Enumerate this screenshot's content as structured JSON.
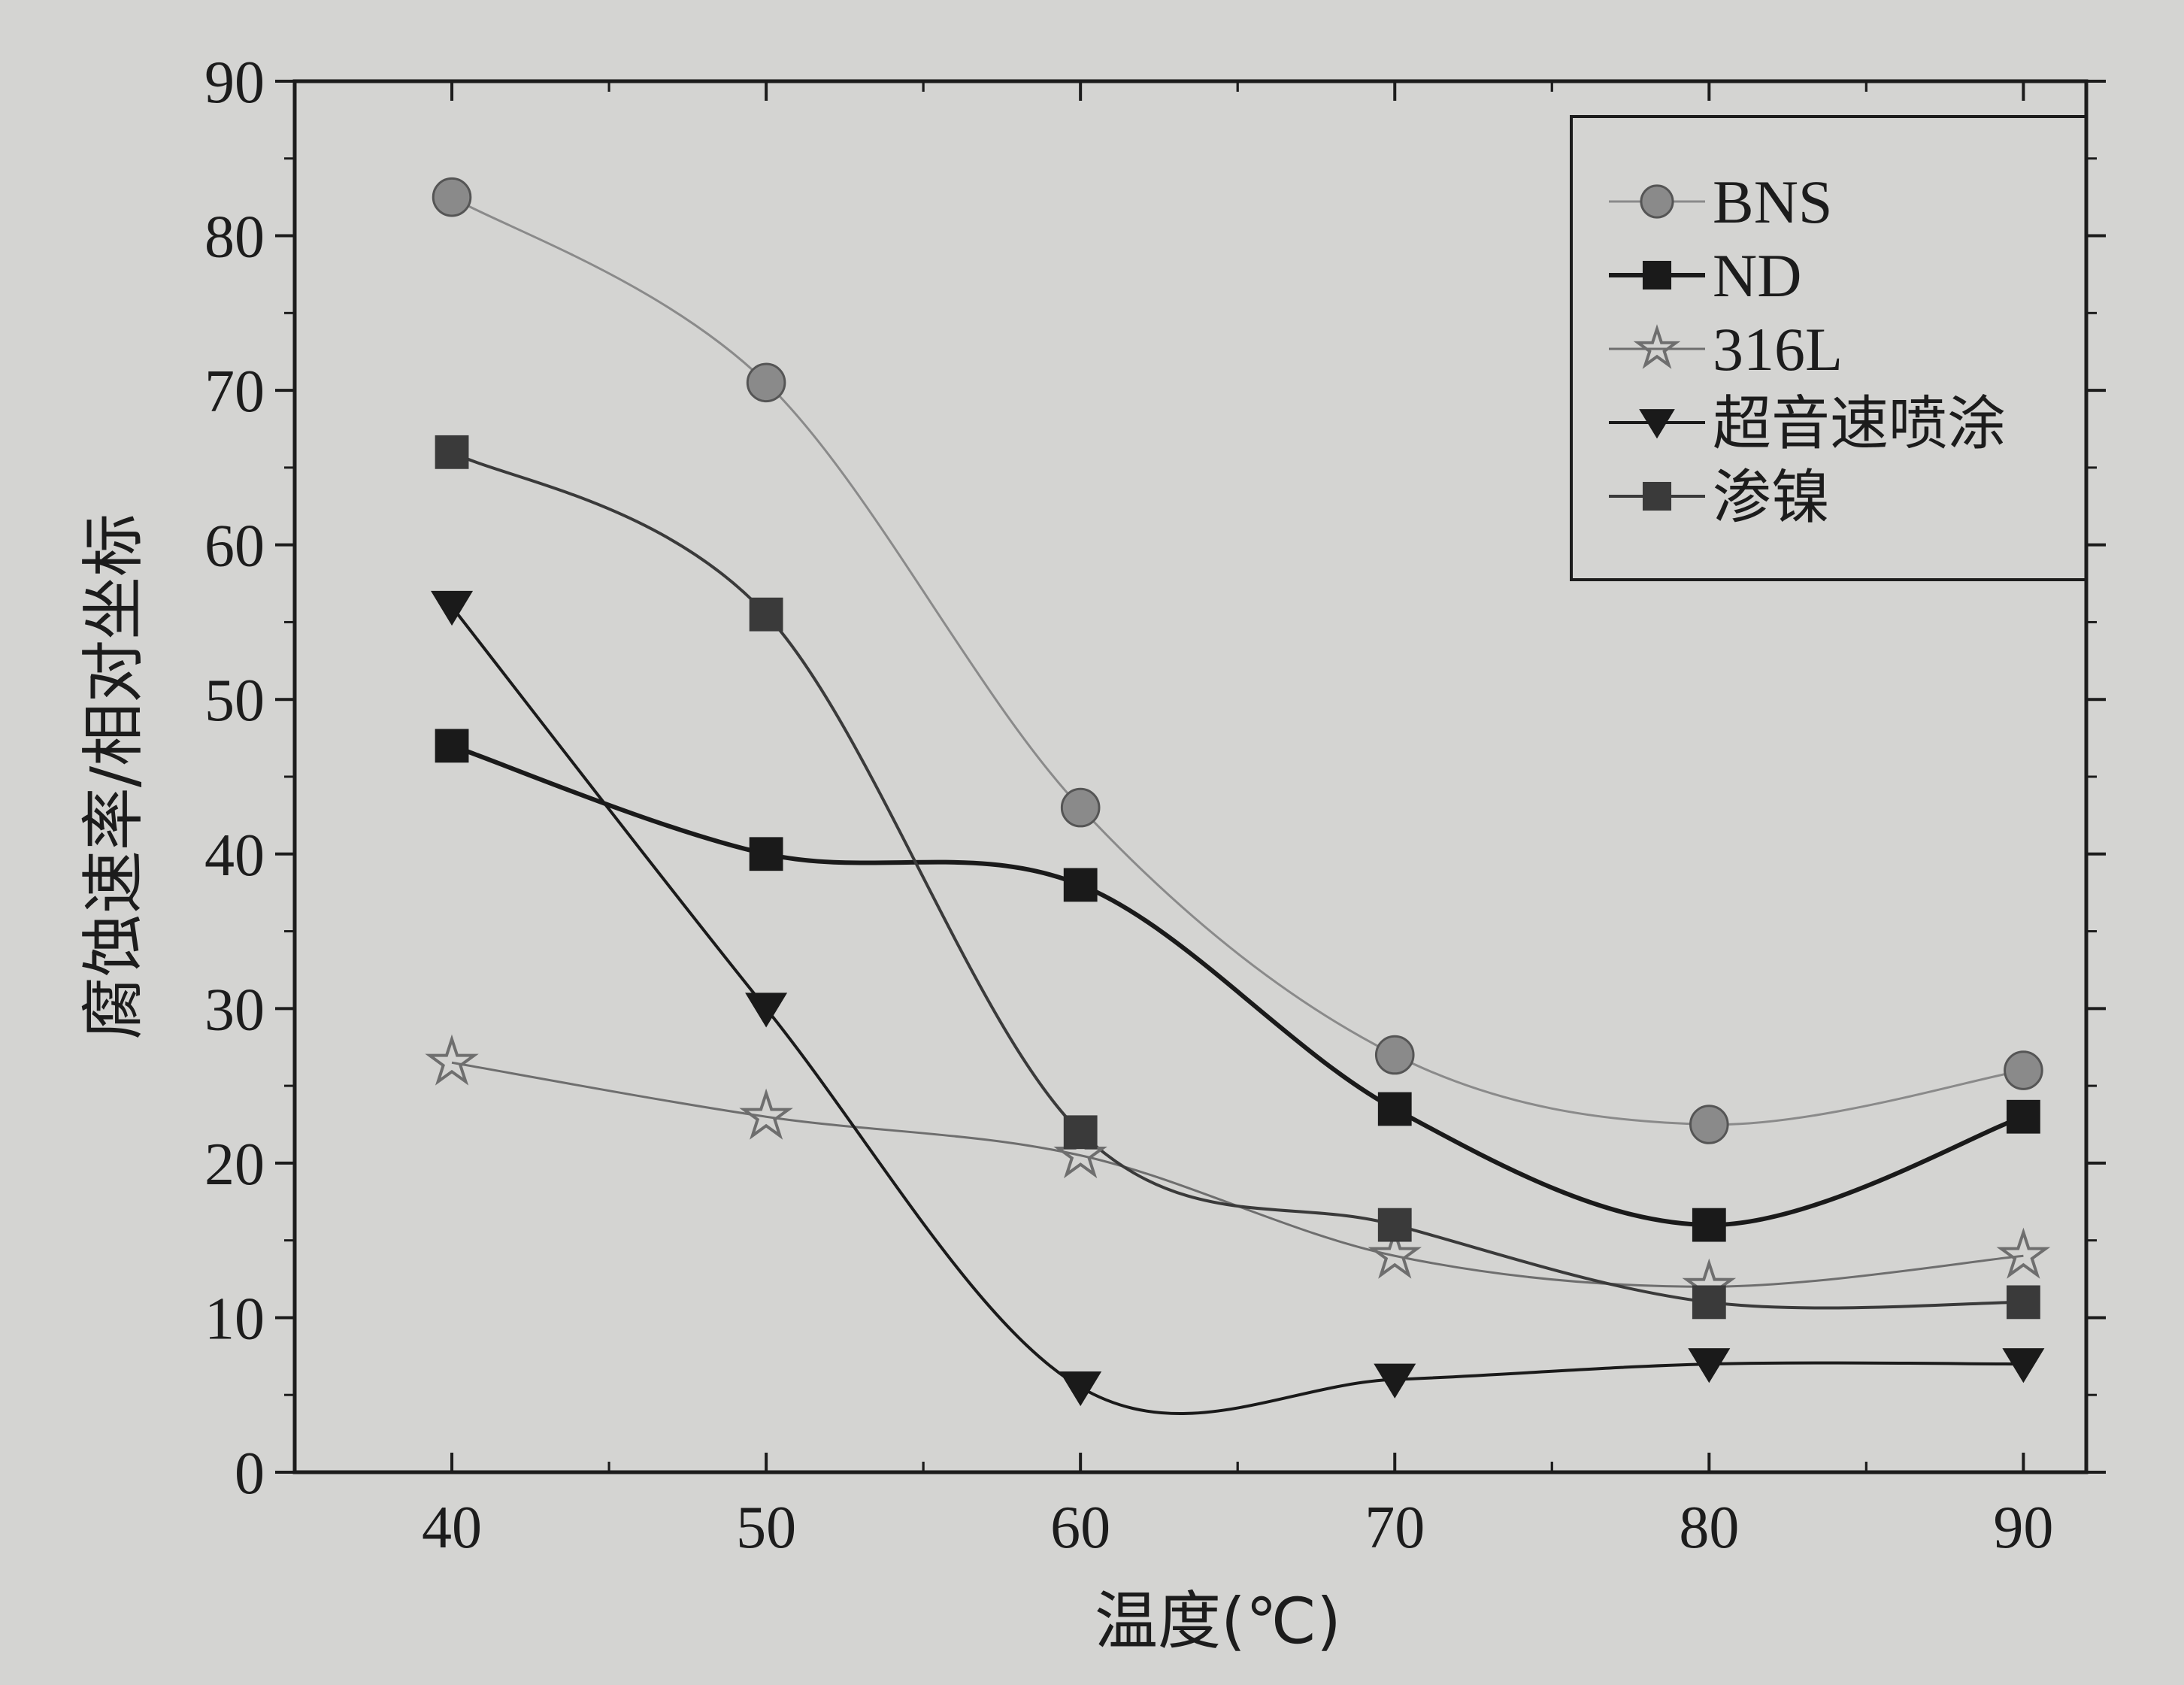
{
  "chart_data": {
    "type": "line",
    "xlabel": "温度(℃)",
    "ylabel": "腐蚀速率/相对坐标",
    "xlim": [
      35,
      92
    ],
    "ylim": [
      0,
      90
    ],
    "xticks": [
      40,
      50,
      60,
      70,
      80,
      90
    ],
    "yticks": [
      0,
      10,
      20,
      30,
      40,
      50,
      60,
      70,
      80,
      90
    ],
    "legend_position": "top-right",
    "grid": false,
    "series": [
      {
        "name": "BNS",
        "marker": "circle",
        "color": "#8a8a8a",
        "line_width": 3,
        "x": [
          40,
          50,
          60,
          70,
          80,
          90
        ],
        "y": [
          82.5,
          70.5,
          43,
          27,
          22.5,
          26
        ]
      },
      {
        "name": "ND",
        "marker": "square",
        "color": "#1a1a1a",
        "line_width": 6,
        "x": [
          40,
          50,
          60,
          70,
          80,
          90
        ],
        "y": [
          47,
          40,
          38,
          23.5,
          16,
          23
        ]
      },
      {
        "name": "316L",
        "marker": "star",
        "color": "#6e6e6e",
        "line_width": 3,
        "x": [
          40,
          50,
          60,
          70,
          80,
          90
        ],
        "y": [
          26.5,
          23,
          20.5,
          14,
          12,
          14
        ]
      },
      {
        "name": "超音速喷涂",
        "marker": "triangle-down",
        "color": "#1a1a1a",
        "line_width": 4,
        "x": [
          40,
          50,
          60,
          70,
          80,
          90
        ],
        "y": [
          56,
          30,
          5.5,
          6,
          7,
          7
        ]
      },
      {
        "name": "渗镍",
        "marker": "square",
        "color": "#3a3a3a",
        "line_width": 4,
        "x": [
          40,
          50,
          60,
          70,
          80,
          90
        ],
        "y": [
          66,
          55.5,
          22,
          16,
          11,
          11
        ]
      }
    ]
  }
}
